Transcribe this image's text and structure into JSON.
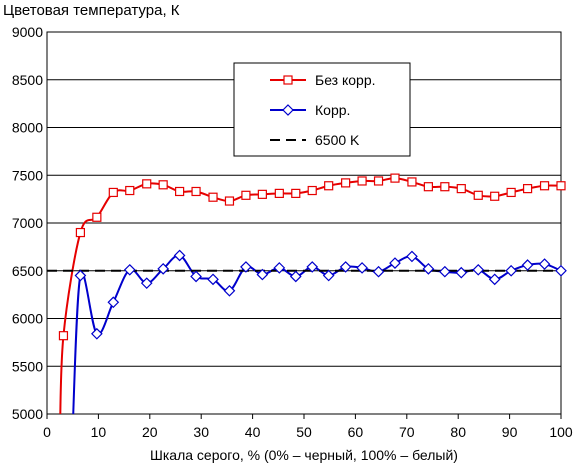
{
  "chart_data": {
    "type": "line",
    "title": "Цветовая температура, К",
    "xlabel": "Шкала серого, % (0% – черный, 100% – белый)",
    "ylabel": "",
    "xlim": [
      0,
      100
    ],
    "ylim": [
      5000,
      9000
    ],
    "x_ticks": [
      0,
      10,
      20,
      30,
      40,
      50,
      60,
      70,
      80,
      90,
      100
    ],
    "x_tick_labels": [
      "0",
      "10",
      "20",
      "30",
      "40",
      "50",
      "60",
      "70",
      "80",
      "90",
      "100"
    ],
    "y_ticks": [
      5000,
      5500,
      6000,
      6500,
      7000,
      7500,
      8000,
      8500,
      9000
    ],
    "y_tick_labels": [
      "5000",
      "5500",
      "6000",
      "6500",
      "7000",
      "7500",
      "8000",
      "8500",
      "9000"
    ],
    "grid": "horizontal",
    "legend_position": "top-center",
    "series": [
      {
        "name": "Без корр.",
        "color": "#e60000",
        "marker": "square",
        "line_style": "solid",
        "x": [
          3.2,
          6.5,
          9.7,
          12.9,
          16.1,
          19.4,
          22.6,
          25.8,
          29.0,
          32.3,
          35.5,
          38.7,
          41.9,
          45.2,
          48.4,
          51.6,
          54.8,
          58.1,
          61.3,
          64.5,
          67.7,
          71.0,
          74.2,
          77.4,
          80.6,
          83.9,
          87.1,
          90.3,
          93.5,
          96.8,
          100.0
        ],
        "y": [
          5820,
          6900,
          7060,
          7320,
          7340,
          7410,
          7400,
          7330,
          7330,
          7270,
          7230,
          7290,
          7300,
          7310,
          7310,
          7340,
          7390,
          7420,
          7440,
          7440,
          7470,
          7430,
          7380,
          7380,
          7360,
          7290,
          7280,
          7320,
          7360,
          7390,
          7390
        ]
      },
      {
        "name": "Корр.",
        "color": "#0000cc",
        "marker": "diamond",
        "line_style": "solid",
        "x": [
          6.5,
          9.7,
          12.9,
          16.1,
          19.4,
          22.6,
          25.8,
          29.0,
          32.3,
          35.5,
          38.7,
          41.9,
          45.2,
          48.4,
          51.6,
          54.8,
          58.1,
          61.3,
          64.5,
          67.7,
          71.0,
          74.2,
          77.4,
          80.6,
          83.9,
          87.1,
          90.3,
          93.5,
          96.8,
          100.0
        ],
        "y": [
          6450,
          5840,
          6170,
          6510,
          6370,
          6520,
          6660,
          6440,
          6410,
          6290,
          6540,
          6460,
          6530,
          6440,
          6540,
          6450,
          6540,
          6530,
          6490,
          6580,
          6650,
          6520,
          6490,
          6480,
          6510,
          6410,
          6500,
          6560,
          6570,
          6500
        ]
      },
      {
        "name": "6500 K",
        "color": "#000000",
        "marker": "none",
        "line_style": "dashed",
        "x": [
          0,
          100
        ],
        "y": [
          6500,
          6500
        ]
      }
    ]
  }
}
